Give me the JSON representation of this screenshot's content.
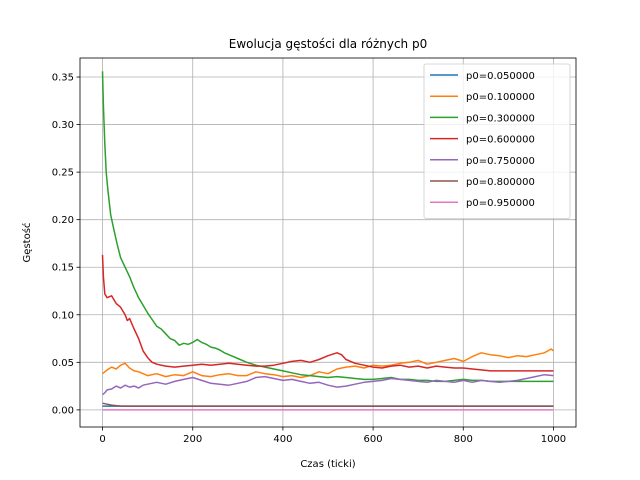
{
  "chart_data": {
    "type": "line",
    "title": "Ewolucja gęstości dla różnych p0",
    "xlabel": "Czas (ticki)",
    "ylabel": "Gęstość",
    "xlim": [
      -50,
      1050
    ],
    "ylim": [
      -0.018,
      0.37
    ],
    "xticks": [
      0,
      200,
      400,
      600,
      800,
      1000
    ],
    "yticks": [
      0.0,
      0.05,
      0.1,
      0.15,
      0.2,
      0.25,
      0.3,
      0.35
    ],
    "grid": true,
    "legend_position": "top-right",
    "series": [
      {
        "name": "p0=0.050000",
        "color": "#1f77b4",
        "points": [
          [
            0,
            0.004
          ],
          [
            20,
            0.004
          ],
          [
            50,
            0.004
          ],
          [
            100,
            0.004
          ],
          [
            200,
            0.004
          ],
          [
            400,
            0.004
          ],
          [
            600,
            0.004
          ],
          [
            800,
            0.004
          ],
          [
            1000,
            0.004
          ]
        ]
      },
      {
        "name": "p0=0.100000",
        "color": "#ff7f0e",
        "points": [
          [
            0,
            0.038
          ],
          [
            10,
            0.042
          ],
          [
            20,
            0.045
          ],
          [
            30,
            0.043
          ],
          [
            40,
            0.047
          ],
          [
            50,
            0.049
          ],
          [
            60,
            0.044
          ],
          [
            70,
            0.041
          ],
          [
            80,
            0.04
          ],
          [
            100,
            0.036
          ],
          [
            120,
            0.038
          ],
          [
            140,
            0.035
          ],
          [
            160,
            0.037
          ],
          [
            180,
            0.036
          ],
          [
            200,
            0.04
          ],
          [
            220,
            0.036
          ],
          [
            240,
            0.035
          ],
          [
            260,
            0.037
          ],
          [
            280,
            0.038
          ],
          [
            300,
            0.036
          ],
          [
            320,
            0.036
          ],
          [
            340,
            0.04
          ],
          [
            360,
            0.038
          ],
          [
            380,
            0.037
          ],
          [
            400,
            0.035
          ],
          [
            420,
            0.036
          ],
          [
            440,
            0.034
          ],
          [
            460,
            0.036
          ],
          [
            480,
            0.04
          ],
          [
            500,
            0.038
          ],
          [
            520,
            0.043
          ],
          [
            540,
            0.045
          ],
          [
            560,
            0.046
          ],
          [
            580,
            0.044
          ],
          [
            600,
            0.047
          ],
          [
            620,
            0.046
          ],
          [
            640,
            0.047
          ],
          [
            660,
            0.049
          ],
          [
            680,
            0.05
          ],
          [
            700,
            0.052
          ],
          [
            720,
            0.048
          ],
          [
            740,
            0.05
          ],
          [
            760,
            0.052
          ],
          [
            780,
            0.054
          ],
          [
            800,
            0.051
          ],
          [
            820,
            0.056
          ],
          [
            840,
            0.06
          ],
          [
            860,
            0.058
          ],
          [
            880,
            0.057
          ],
          [
            900,
            0.055
          ],
          [
            920,
            0.057
          ],
          [
            940,
            0.056
          ],
          [
            960,
            0.058
          ],
          [
            980,
            0.06
          ],
          [
            995,
            0.064
          ],
          [
            1000,
            0.062
          ]
        ]
      },
      {
        "name": "p0=0.300000",
        "color": "#2ca02c",
        "points": [
          [
            0,
            0.356
          ],
          [
            2,
            0.32
          ],
          [
            5,
            0.28
          ],
          [
            8,
            0.25
          ],
          [
            12,
            0.23
          ],
          [
            18,
            0.205
          ],
          [
            25,
            0.19
          ],
          [
            32,
            0.175
          ],
          [
            40,
            0.16
          ],
          [
            50,
            0.15
          ],
          [
            60,
            0.14
          ],
          [
            70,
            0.128
          ],
          [
            80,
            0.118
          ],
          [
            90,
            0.11
          ],
          [
            100,
            0.102
          ],
          [
            110,
            0.095
          ],
          [
            120,
            0.088
          ],
          [
            130,
            0.085
          ],
          [
            140,
            0.08
          ],
          [
            150,
            0.075
          ],
          [
            160,
            0.073
          ],
          [
            170,
            0.068
          ],
          [
            180,
            0.07
          ],
          [
            190,
            0.069
          ],
          [
            200,
            0.071
          ],
          [
            210,
            0.074
          ],
          [
            220,
            0.071
          ],
          [
            230,
            0.069
          ],
          [
            240,
            0.066
          ],
          [
            250,
            0.065
          ],
          [
            260,
            0.063
          ],
          [
            270,
            0.06
          ],
          [
            280,
            0.058
          ],
          [
            290,
            0.056
          ],
          [
            300,
            0.054
          ],
          [
            320,
            0.05
          ],
          [
            340,
            0.047
          ],
          [
            360,
            0.045
          ],
          [
            380,
            0.043
          ],
          [
            400,
            0.041
          ],
          [
            420,
            0.039
          ],
          [
            440,
            0.037
          ],
          [
            460,
            0.036
          ],
          [
            480,
            0.035
          ],
          [
            500,
            0.034
          ],
          [
            520,
            0.035
          ],
          [
            540,
            0.034
          ],
          [
            560,
            0.033
          ],
          [
            580,
            0.032
          ],
          [
            600,
            0.032
          ],
          [
            620,
            0.033
          ],
          [
            640,
            0.034
          ],
          [
            660,
            0.032
          ],
          [
            680,
            0.032
          ],
          [
            700,
            0.031
          ],
          [
            720,
            0.031
          ],
          [
            740,
            0.03
          ],
          [
            760,
            0.03
          ],
          [
            780,
            0.031
          ],
          [
            800,
            0.032
          ],
          [
            820,
            0.031
          ],
          [
            840,
            0.031
          ],
          [
            860,
            0.03
          ],
          [
            880,
            0.03
          ],
          [
            900,
            0.03
          ],
          [
            940,
            0.03
          ],
          [
            980,
            0.03
          ],
          [
            1000,
            0.03
          ]
        ]
      },
      {
        "name": "p0=0.600000",
        "color": "#d62728",
        "points": [
          [
            0,
            0.163
          ],
          [
            2,
            0.14
          ],
          [
            5,
            0.122
          ],
          [
            10,
            0.118
          ],
          [
            20,
            0.12
          ],
          [
            30,
            0.112
          ],
          [
            40,
            0.108
          ],
          [
            50,
            0.1
          ],
          [
            55,
            0.094
          ],
          [
            60,
            0.096
          ],
          [
            70,
            0.085
          ],
          [
            80,
            0.075
          ],
          [
            90,
            0.062
          ],
          [
            100,
            0.055
          ],
          [
            110,
            0.05
          ],
          [
            120,
            0.048
          ],
          [
            140,
            0.046
          ],
          [
            160,
            0.045
          ],
          [
            180,
            0.046
          ],
          [
            200,
            0.047
          ],
          [
            220,
            0.048
          ],
          [
            240,
            0.047
          ],
          [
            260,
            0.048
          ],
          [
            280,
            0.049
          ],
          [
            300,
            0.048
          ],
          [
            320,
            0.047
          ],
          [
            340,
            0.046
          ],
          [
            360,
            0.046
          ],
          [
            380,
            0.047
          ],
          [
            400,
            0.049
          ],
          [
            420,
            0.051
          ],
          [
            440,
            0.052
          ],
          [
            460,
            0.05
          ],
          [
            480,
            0.053
          ],
          [
            500,
            0.057
          ],
          [
            520,
            0.06
          ],
          [
            530,
            0.058
          ],
          [
            540,
            0.053
          ],
          [
            560,
            0.049
          ],
          [
            580,
            0.047
          ],
          [
            600,
            0.045
          ],
          [
            620,
            0.044
          ],
          [
            640,
            0.046
          ],
          [
            660,
            0.047
          ],
          [
            680,
            0.045
          ],
          [
            700,
            0.046
          ],
          [
            720,
            0.044
          ],
          [
            740,
            0.046
          ],
          [
            760,
            0.045
          ],
          [
            780,
            0.044
          ],
          [
            800,
            0.044
          ],
          [
            820,
            0.043
          ],
          [
            840,
            0.042
          ],
          [
            860,
            0.041
          ],
          [
            880,
            0.041
          ],
          [
            900,
            0.041
          ],
          [
            940,
            0.041
          ],
          [
            980,
            0.041
          ],
          [
            1000,
            0.041
          ]
        ]
      },
      {
        "name": "p0=0.750000",
        "color": "#9467bd",
        "points": [
          [
            0,
            0.016
          ],
          [
            5,
            0.018
          ],
          [
            10,
            0.021
          ],
          [
            20,
            0.022
          ],
          [
            30,
            0.025
          ],
          [
            40,
            0.023
          ],
          [
            50,
            0.026
          ],
          [
            60,
            0.024
          ],
          [
            70,
            0.025
          ],
          [
            80,
            0.023
          ],
          [
            90,
            0.026
          ],
          [
            100,
            0.027
          ],
          [
            120,
            0.029
          ],
          [
            140,
            0.027
          ],
          [
            160,
            0.03
          ],
          [
            180,
            0.032
          ],
          [
            200,
            0.034
          ],
          [
            220,
            0.031
          ],
          [
            240,
            0.028
          ],
          [
            260,
            0.027
          ],
          [
            280,
            0.026
          ],
          [
            300,
            0.028
          ],
          [
            320,
            0.03
          ],
          [
            340,
            0.034
          ],
          [
            360,
            0.035
          ],
          [
            380,
            0.033
          ],
          [
            400,
            0.031
          ],
          [
            420,
            0.032
          ],
          [
            440,
            0.03
          ],
          [
            460,
            0.028
          ],
          [
            480,
            0.029
          ],
          [
            500,
            0.026
          ],
          [
            520,
            0.024
          ],
          [
            540,
            0.025
          ],
          [
            560,
            0.027
          ],
          [
            580,
            0.029
          ],
          [
            600,
            0.03
          ],
          [
            620,
            0.031
          ],
          [
            640,
            0.033
          ],
          [
            660,
            0.032
          ],
          [
            680,
            0.031
          ],
          [
            700,
            0.03
          ],
          [
            720,
            0.029
          ],
          [
            740,
            0.031
          ],
          [
            760,
            0.03
          ],
          [
            780,
            0.029
          ],
          [
            800,
            0.031
          ],
          [
            820,
            0.029
          ],
          [
            840,
            0.031
          ],
          [
            860,
            0.03
          ],
          [
            880,
            0.029
          ],
          [
            900,
            0.03
          ],
          [
            920,
            0.031
          ],
          [
            940,
            0.033
          ],
          [
            960,
            0.035
          ],
          [
            980,
            0.037
          ],
          [
            1000,
            0.036
          ]
        ]
      },
      {
        "name": "p0=0.800000",
        "color": "#8c564b",
        "points": [
          [
            0,
            0.007
          ],
          [
            10,
            0.006
          ],
          [
            20,
            0.005
          ],
          [
            40,
            0.004
          ],
          [
            60,
            0.004
          ],
          [
            100,
            0.004
          ],
          [
            200,
            0.004
          ],
          [
            400,
            0.004
          ],
          [
            600,
            0.004
          ],
          [
            800,
            0.004
          ],
          [
            1000,
            0.004
          ]
        ]
      },
      {
        "name": "p0=0.950000",
        "color": "#e377c2",
        "points": [
          [
            0,
            0.0
          ],
          [
            1000,
            0.0
          ]
        ]
      }
    ]
  }
}
